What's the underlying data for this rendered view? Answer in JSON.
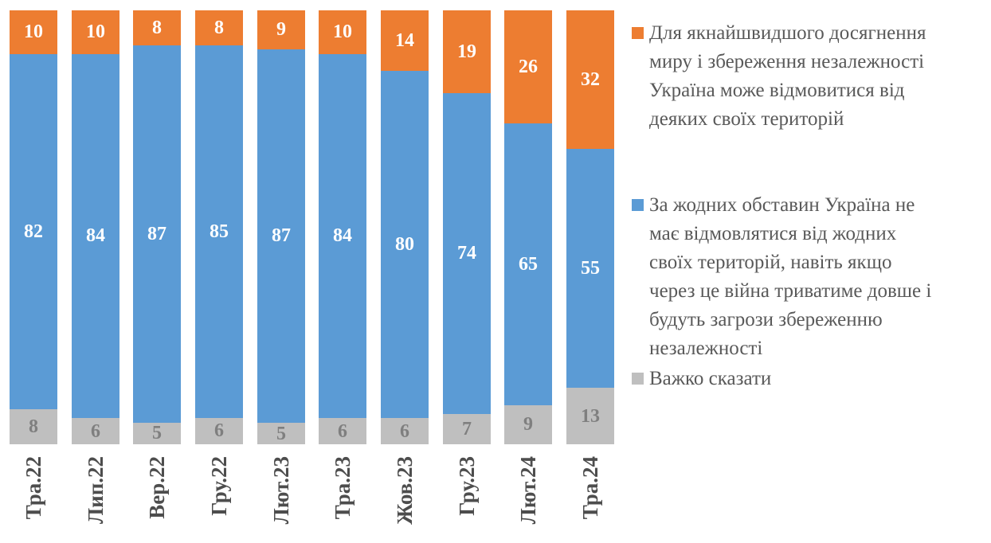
{
  "chart_data": {
    "type": "bar",
    "stacked": true,
    "stacking": "percent",
    "title": "",
    "xlabel": "",
    "ylabel": "",
    "grid": false,
    "legend_position": "right",
    "axis_label_color": "#4d4d4d",
    "legend_text_color": "#595959",
    "categories": [
      "Тра.22",
      "Лип.22",
      "Вер.22",
      "Гру.22",
      "Лют.23",
      "Тра.23",
      "Жов.23",
      "Гру.23",
      "Лют.24",
      "Тра.24"
    ],
    "series": [
      {
        "name": "Для якнайшвидшого досягнення миру і збереження незалежності Україна може відмовитися від деяких своїх територій",
        "color": "#ED7D31",
        "label_color": "#FFFFFF",
        "values": [
          10,
          10,
          8,
          8,
          9,
          10,
          14,
          19,
          26,
          32
        ]
      },
      {
        "name": "За жодних обставин Україна не має відмовлятися від жодних своїх територій, навіть якщо через це війна триватиме довше і будуть загрози збереженню незалежності",
        "color": "#5B9BD5",
        "label_color": "#FFFFFF",
        "values": [
          82,
          84,
          87,
          85,
          87,
          84,
          80,
          74,
          65,
          55
        ]
      },
      {
        "name": "Важко сказати",
        "color": "#BFBFBF",
        "label_color": "#7F7F7F",
        "values": [
          8,
          6,
          5,
          6,
          5,
          6,
          6,
          7,
          9,
          13
        ]
      }
    ]
  },
  "legend": {
    "entries": [
      {
        "swatch_color": "#ED7D31",
        "lines": [
          "Для якнайшвидшого досягнення",
          "миру і збереження незалежності",
          "Україна може відмовитися від",
          "деяких своїх територій"
        ]
      },
      {
        "swatch_color": "#5B9BD5",
        "lines": [
          "За жодних обставин Україна не",
          "має відмовлятися від жодних",
          "своїх територій, навіть якщо",
          "через це війна триватиме довше і",
          "будуть загрози збереженню",
          "незалежності"
        ]
      },
      {
        "swatch_color": "#BFBFBF",
        "lines": [
          "Важко сказати"
        ]
      }
    ]
  }
}
